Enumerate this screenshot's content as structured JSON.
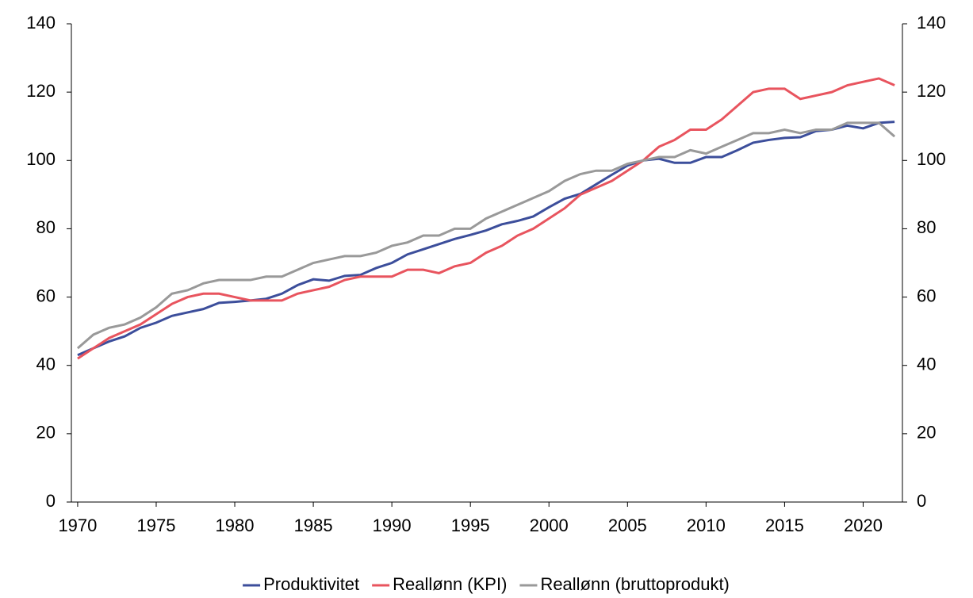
{
  "chart_data": {
    "type": "line",
    "x": [
      1970,
      1971,
      1972,
      1973,
      1974,
      1975,
      1976,
      1977,
      1978,
      1979,
      1980,
      1981,
      1982,
      1983,
      1984,
      1985,
      1986,
      1987,
      1988,
      1989,
      1990,
      1991,
      1992,
      1993,
      1994,
      1995,
      1996,
      1997,
      1998,
      1999,
      2000,
      2001,
      2002,
      2003,
      2004,
      2005,
      2006,
      2007,
      2008,
      2009,
      2010,
      2011,
      2012,
      2013,
      2014,
      2015,
      2016,
      2017,
      2018,
      2019,
      2020,
      2021,
      2022
    ],
    "series": [
      {
        "name": "Produktivitet",
        "color": "#3c4e9b",
        "values": [
          43,
          45,
          47,
          48.5,
          51,
          52.5,
          54.5,
          55.5,
          56.5,
          58.3,
          58.6,
          59,
          59.5,
          61,
          63.5,
          65.2,
          64.8,
          66.2,
          66.5,
          68.5,
          70,
          72.5,
          74,
          75.5,
          77,
          78.2,
          79.5,
          81.3,
          82.3,
          83.6,
          86.3,
          88.8,
          90.2,
          93,
          95.8,
          98.5,
          100,
          100.5,
          99.3,
          99.3,
          101,
          101,
          103,
          105.2,
          106,
          106.6,
          106.8,
          108.6,
          109,
          110.2,
          109.4,
          111,
          111.3
        ]
      },
      {
        "name": "Reallønn (KPI)",
        "color": "#e8545e",
        "values": [
          42,
          45,
          48,
          50,
          52,
          55,
          58,
          60,
          61,
          61,
          60,
          59,
          59,
          59,
          61,
          62,
          63,
          65,
          66,
          66,
          66,
          68,
          68,
          67,
          69,
          70,
          73,
          75,
          78,
          80,
          83,
          86,
          90,
          92,
          94,
          97,
          100,
          104,
          106,
          109,
          109,
          112,
          116,
          120,
          121,
          121,
          118,
          119,
          120,
          122,
          123,
          124,
          122
        ]
      },
      {
        "name": "Reallønn (bruttoprodukt)",
        "color": "#999999",
        "values": [
          45,
          49,
          51,
          52,
          54,
          57,
          61,
          62,
          64,
          65,
          65,
          65,
          66,
          66,
          68,
          70,
          71,
          72,
          72,
          73,
          75,
          76,
          78,
          78,
          80,
          80,
          83,
          85,
          87,
          89,
          91,
          94,
          96,
          97,
          97,
          99,
          100,
          101,
          101,
          103,
          102,
          104,
          106,
          108,
          108,
          109,
          108,
          109,
          109,
          111,
          111,
          111,
          107
        ]
      }
    ],
    "xlim": [
      1969.6,
      2022.5
    ],
    "xticks": [
      1970,
      1975,
      1980,
      1985,
      1990,
      1995,
      2000,
      2005,
      2010,
      2015,
      2020
    ],
    "ylim": [
      0,
      140
    ],
    "yticks": [
      0,
      20,
      40,
      60,
      80,
      100,
      120,
      140
    ],
    "y2lim": [
      0,
      140
    ],
    "y2ticks": [
      0,
      20,
      40,
      60,
      80,
      100,
      120,
      140
    ],
    "legend": "bottom"
  }
}
